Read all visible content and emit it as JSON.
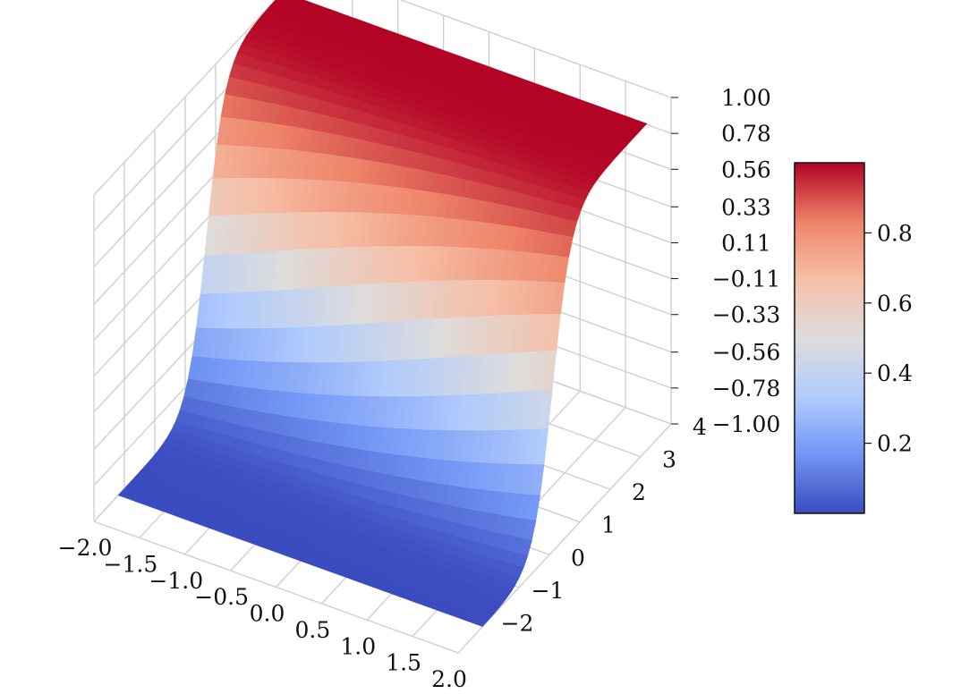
{
  "chart_data": {
    "type": "surface3d",
    "colormap": "coolwarm",
    "grid": true,
    "x_axis": {
      "range": [
        -2.0,
        2.0
      ],
      "ticks": [
        -2.0,
        -1.5,
        -1.0,
        -0.5,
        0.0,
        0.5,
        1.0,
        1.5,
        2.0
      ],
      "tick_labels": [
        "−2.0",
        "−1.5",
        "−1.0",
        "−0.5",
        "0.0",
        "0.5",
        "1.0",
        "1.5",
        "2.0"
      ]
    },
    "y_axis": {
      "range": [
        -3,
        4
      ],
      "ticks": [
        -2,
        -1,
        0,
        1,
        2,
        3,
        4
      ],
      "tick_labels": [
        "−2",
        "−1",
        "0",
        "1",
        "2",
        "3",
        "4"
      ]
    },
    "z_axis": {
      "range": [
        -1.0,
        1.0
      ],
      "ticks": [
        1.0,
        0.78,
        0.56,
        0.33,
        0.11,
        -0.11,
        -0.33,
        -0.56,
        -0.78,
        -1.0
      ],
      "tick_labels": [
        "1.00",
        "0.78",
        "0.56",
        "0.33",
        "0.11",
        "−0.11",
        "−0.33",
        "−0.56",
        "−0.78",
        "−1.00"
      ]
    },
    "surface": {
      "description_values": "z = tanh-like step along y, from about -1.0 at low y to 1.0 at high y, nearly flat in x",
      "z_min": -1.0,
      "z_max": 1.0
    },
    "colorbar": {
      "range": [
        0.0,
        1.0
      ],
      "ticks": [
        0.2,
        0.4,
        0.6,
        0.8
      ],
      "tick_labels": [
        "0.2",
        "0.4",
        "0.6",
        "0.8"
      ],
      "colors": [
        "#3b4cc0",
        "#7396f5",
        "#b0cbfc",
        "#dddcdc",
        "#f6bfa6",
        "#ee8468",
        "#b40426"
      ]
    }
  }
}
